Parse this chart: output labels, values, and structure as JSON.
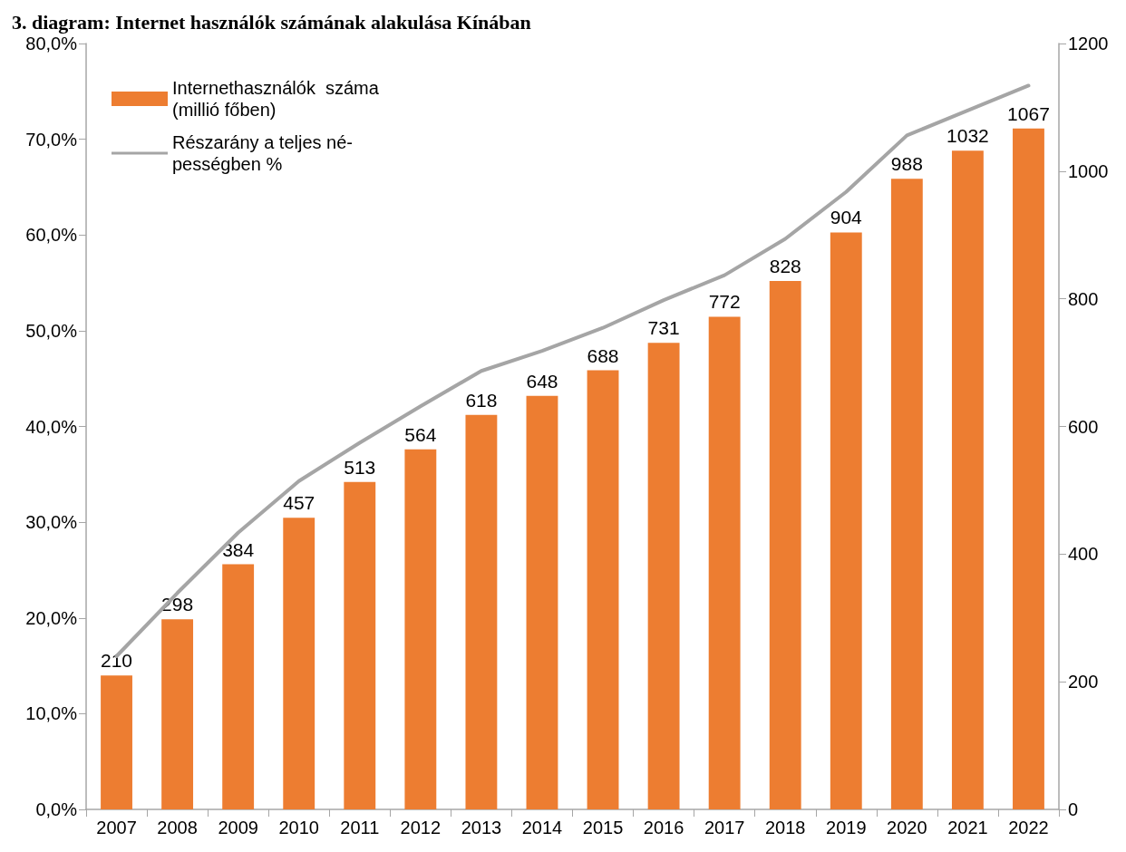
{
  "chart_data": {
    "type": "bar",
    "title": "3. diagram: Internet használók számának alakulása Kínában",
    "categories": [
      "2007",
      "2008",
      "2009",
      "2010",
      "2011",
      "2012",
      "2013",
      "2014",
      "2015",
      "2016",
      "2017",
      "2018",
      "2019",
      "2020",
      "2021",
      "2022"
    ],
    "series": [
      {
        "name": "Internethasználók  száma\n(millió főben)",
        "axis": "y2",
        "color": "#ed7d31",
        "values": [
          210,
          298,
          384,
          457,
          513,
          564,
          618,
          648,
          688,
          731,
          772,
          828,
          904,
          988,
          1032,
          1067
        ],
        "value_labels": [
          "210",
          "298",
          "384",
          "457",
          "513",
          "564",
          "618",
          "648",
          "688",
          "731",
          "772",
          "828",
          "904",
          "988",
          "1032",
          "1067"
        ]
      },
      {
        "name": "Részarány a teljes né-\npességben %",
        "type": "line",
        "color": "#a5a5a5",
        "values": [
          16.0,
          22.6,
          28.9,
          34.3,
          38.3,
          42.1,
          45.8,
          47.9,
          50.3,
          53.2,
          55.8,
          59.6,
          64.5,
          70.4,
          73.0,
          75.6
        ]
      }
    ],
    "ylim": [
      0,
      80
    ],
    "yticks": [
      {
        "value": 0,
        "label": "0,0%"
      },
      {
        "value": 10,
        "label": "10,0%"
      },
      {
        "value": 20,
        "label": "20,0%"
      },
      {
        "value": 30,
        "label": "30,0%"
      },
      {
        "value": 40,
        "label": "40,0%"
      },
      {
        "value": 50,
        "label": "50,0%"
      },
      {
        "value": 60,
        "label": "60,0%"
      },
      {
        "value": 70,
        "label": "70,0%"
      },
      {
        "value": 80,
        "label": "80,0%"
      }
    ],
    "y2lim": [
      0,
      1200
    ],
    "y2ticks": [
      0,
      200,
      400,
      600,
      800,
      1000,
      1200
    ],
    "grid": false,
    "legend": "top left",
    "marker": "none",
    "line_style": "solid"
  }
}
